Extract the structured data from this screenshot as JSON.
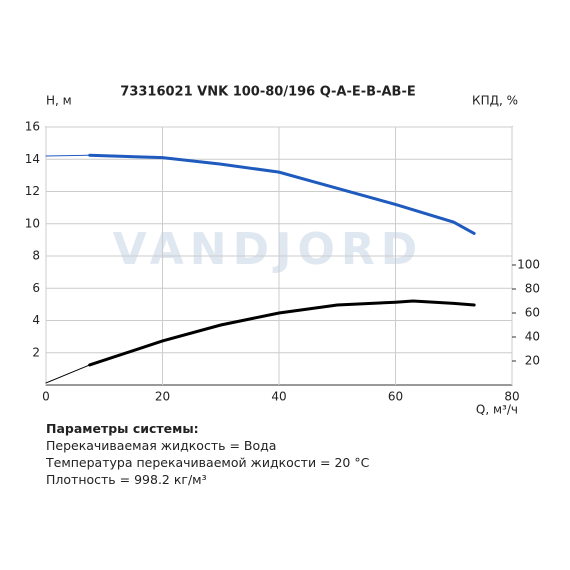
{
  "chart_data": {
    "type": "line",
    "title": "73316021 VNK 100-80/196 Q-A-E-B-AB-E",
    "watermark": "VANDJORD",
    "xlabel": "Q, м³/ч",
    "ylabel": "H, м",
    "y2label": "КПД, %",
    "xlim": [
      0,
      80
    ],
    "xticks": [
      0,
      20,
      40,
      60,
      80
    ],
    "ylim": [
      0,
      16
    ],
    "yticks": [
      2,
      4,
      6,
      8,
      10,
      12,
      14,
      16
    ],
    "y2lim": [
      0,
      215
    ],
    "y2ticks": [
      20,
      40,
      60,
      80,
      100
    ],
    "grid": true,
    "series": [
      {
        "color": "#1f5bbf",
        "width": 1,
        "x": [
          0,
          7.5
        ],
        "values": [
          14.2,
          14.25
        ]
      },
      {
        "color": "#1f5bbf",
        "width": 3,
        "x": [
          7.5,
          10,
          20,
          30,
          40,
          50,
          60,
          70,
          73.5
        ],
        "values": [
          14.25,
          14.22,
          14.1,
          13.7,
          13.2,
          12.2,
          11.2,
          10.1,
          9.4
        ]
      },
      {
        "color": "#000000",
        "width": 1,
        "axis": "y2",
        "x": [
          0,
          7.5
        ],
        "values": [
          1.7,
          16.7
        ]
      },
      {
        "color": "#000000",
        "width": 3,
        "axis": "y2",
        "x": [
          7.5,
          20,
          30,
          40,
          50,
          60,
          63,
          70,
          73.5
        ],
        "values": [
          16.7,
          36.7,
          50,
          60,
          66.7,
          69,
          70,
          68,
          66.7
        ]
      }
    ]
  },
  "parameters": {
    "title": "Параметры системы:",
    "lines": [
      "Перекачиваемая жидкость = Вода",
      "Температура перекачиваемой жидкости = 20 °C",
      "Плотность = 998.2 кг/м³"
    ]
  }
}
